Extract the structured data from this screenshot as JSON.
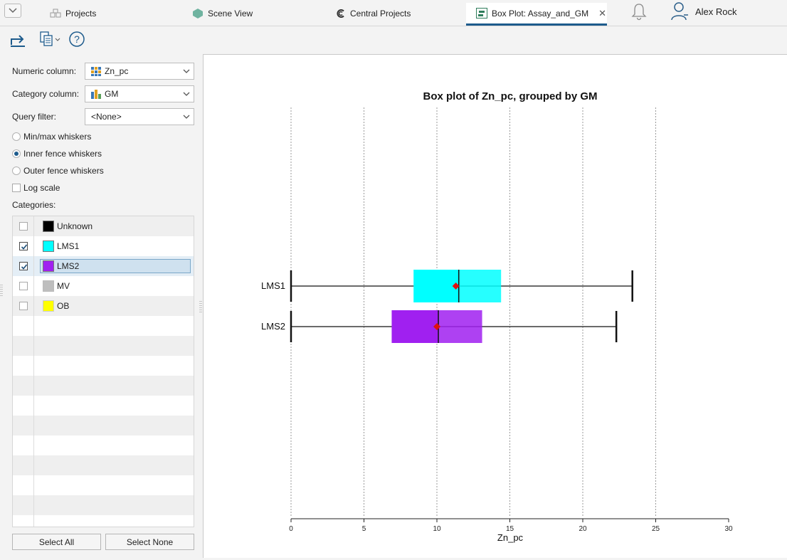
{
  "tabs": [
    {
      "label": "Projects",
      "icon": "projects-icon"
    },
    {
      "label": "Scene View",
      "icon": "scene-view-icon"
    },
    {
      "label": "Central Projects",
      "icon": "central-projects-icon"
    },
    {
      "label": "Box Plot: Assay_and_GM",
      "icon": "box-plot-icon",
      "active": true
    }
  ],
  "user": {
    "name": "Alex Rock"
  },
  "form": {
    "numeric_label": "Numeric column:",
    "numeric_value": "Zn_pc",
    "category_label": "Category column:",
    "category_value": "GM",
    "query_label": "Query filter:",
    "query_value": "<None>"
  },
  "options": {
    "minmax": "Min/max whiskers",
    "inner": "Inner fence whiskers",
    "outer": "Outer fence whiskers",
    "selected_whisker": "inner",
    "log_scale": "Log scale",
    "log_scale_checked": false
  },
  "categories_label": "Categories:",
  "categories": [
    {
      "name": "Unknown",
      "color": "#000000",
      "checked": false
    },
    {
      "name": "LMS1",
      "color": "#00ffff",
      "checked": true
    },
    {
      "name": "LMS2",
      "color": "#a020f0",
      "checked": true,
      "selected": true
    },
    {
      "name": "MV",
      "color": "#bebebe",
      "checked": false
    },
    {
      "name": "OB",
      "color": "#ffff00",
      "checked": false
    }
  ],
  "buttons": {
    "select_all": "Select All",
    "select_none": "Select None"
  },
  "chart_data": {
    "type": "box",
    "title": "Box plot of Zn_pc, grouped by GM",
    "xlabel": "Zn_pc",
    "xlim": [
      0,
      30
    ],
    "xticks": [
      0,
      5,
      10,
      15,
      20,
      25,
      30
    ],
    "grid": "vertical dotted",
    "series": [
      {
        "name": "LMS1",
        "color": "#00ffff",
        "whisker_low": 0,
        "q1": 8.4,
        "median": 11.5,
        "q3": 14.4,
        "whisker_high": 23.4,
        "mean": 11.3
      },
      {
        "name": "LMS2",
        "color": "#a020f0",
        "whisker_low": 0,
        "q1": 6.9,
        "median": 10.1,
        "q3": 13.1,
        "whisker_high": 22.3,
        "mean": 10.0
      }
    ]
  }
}
